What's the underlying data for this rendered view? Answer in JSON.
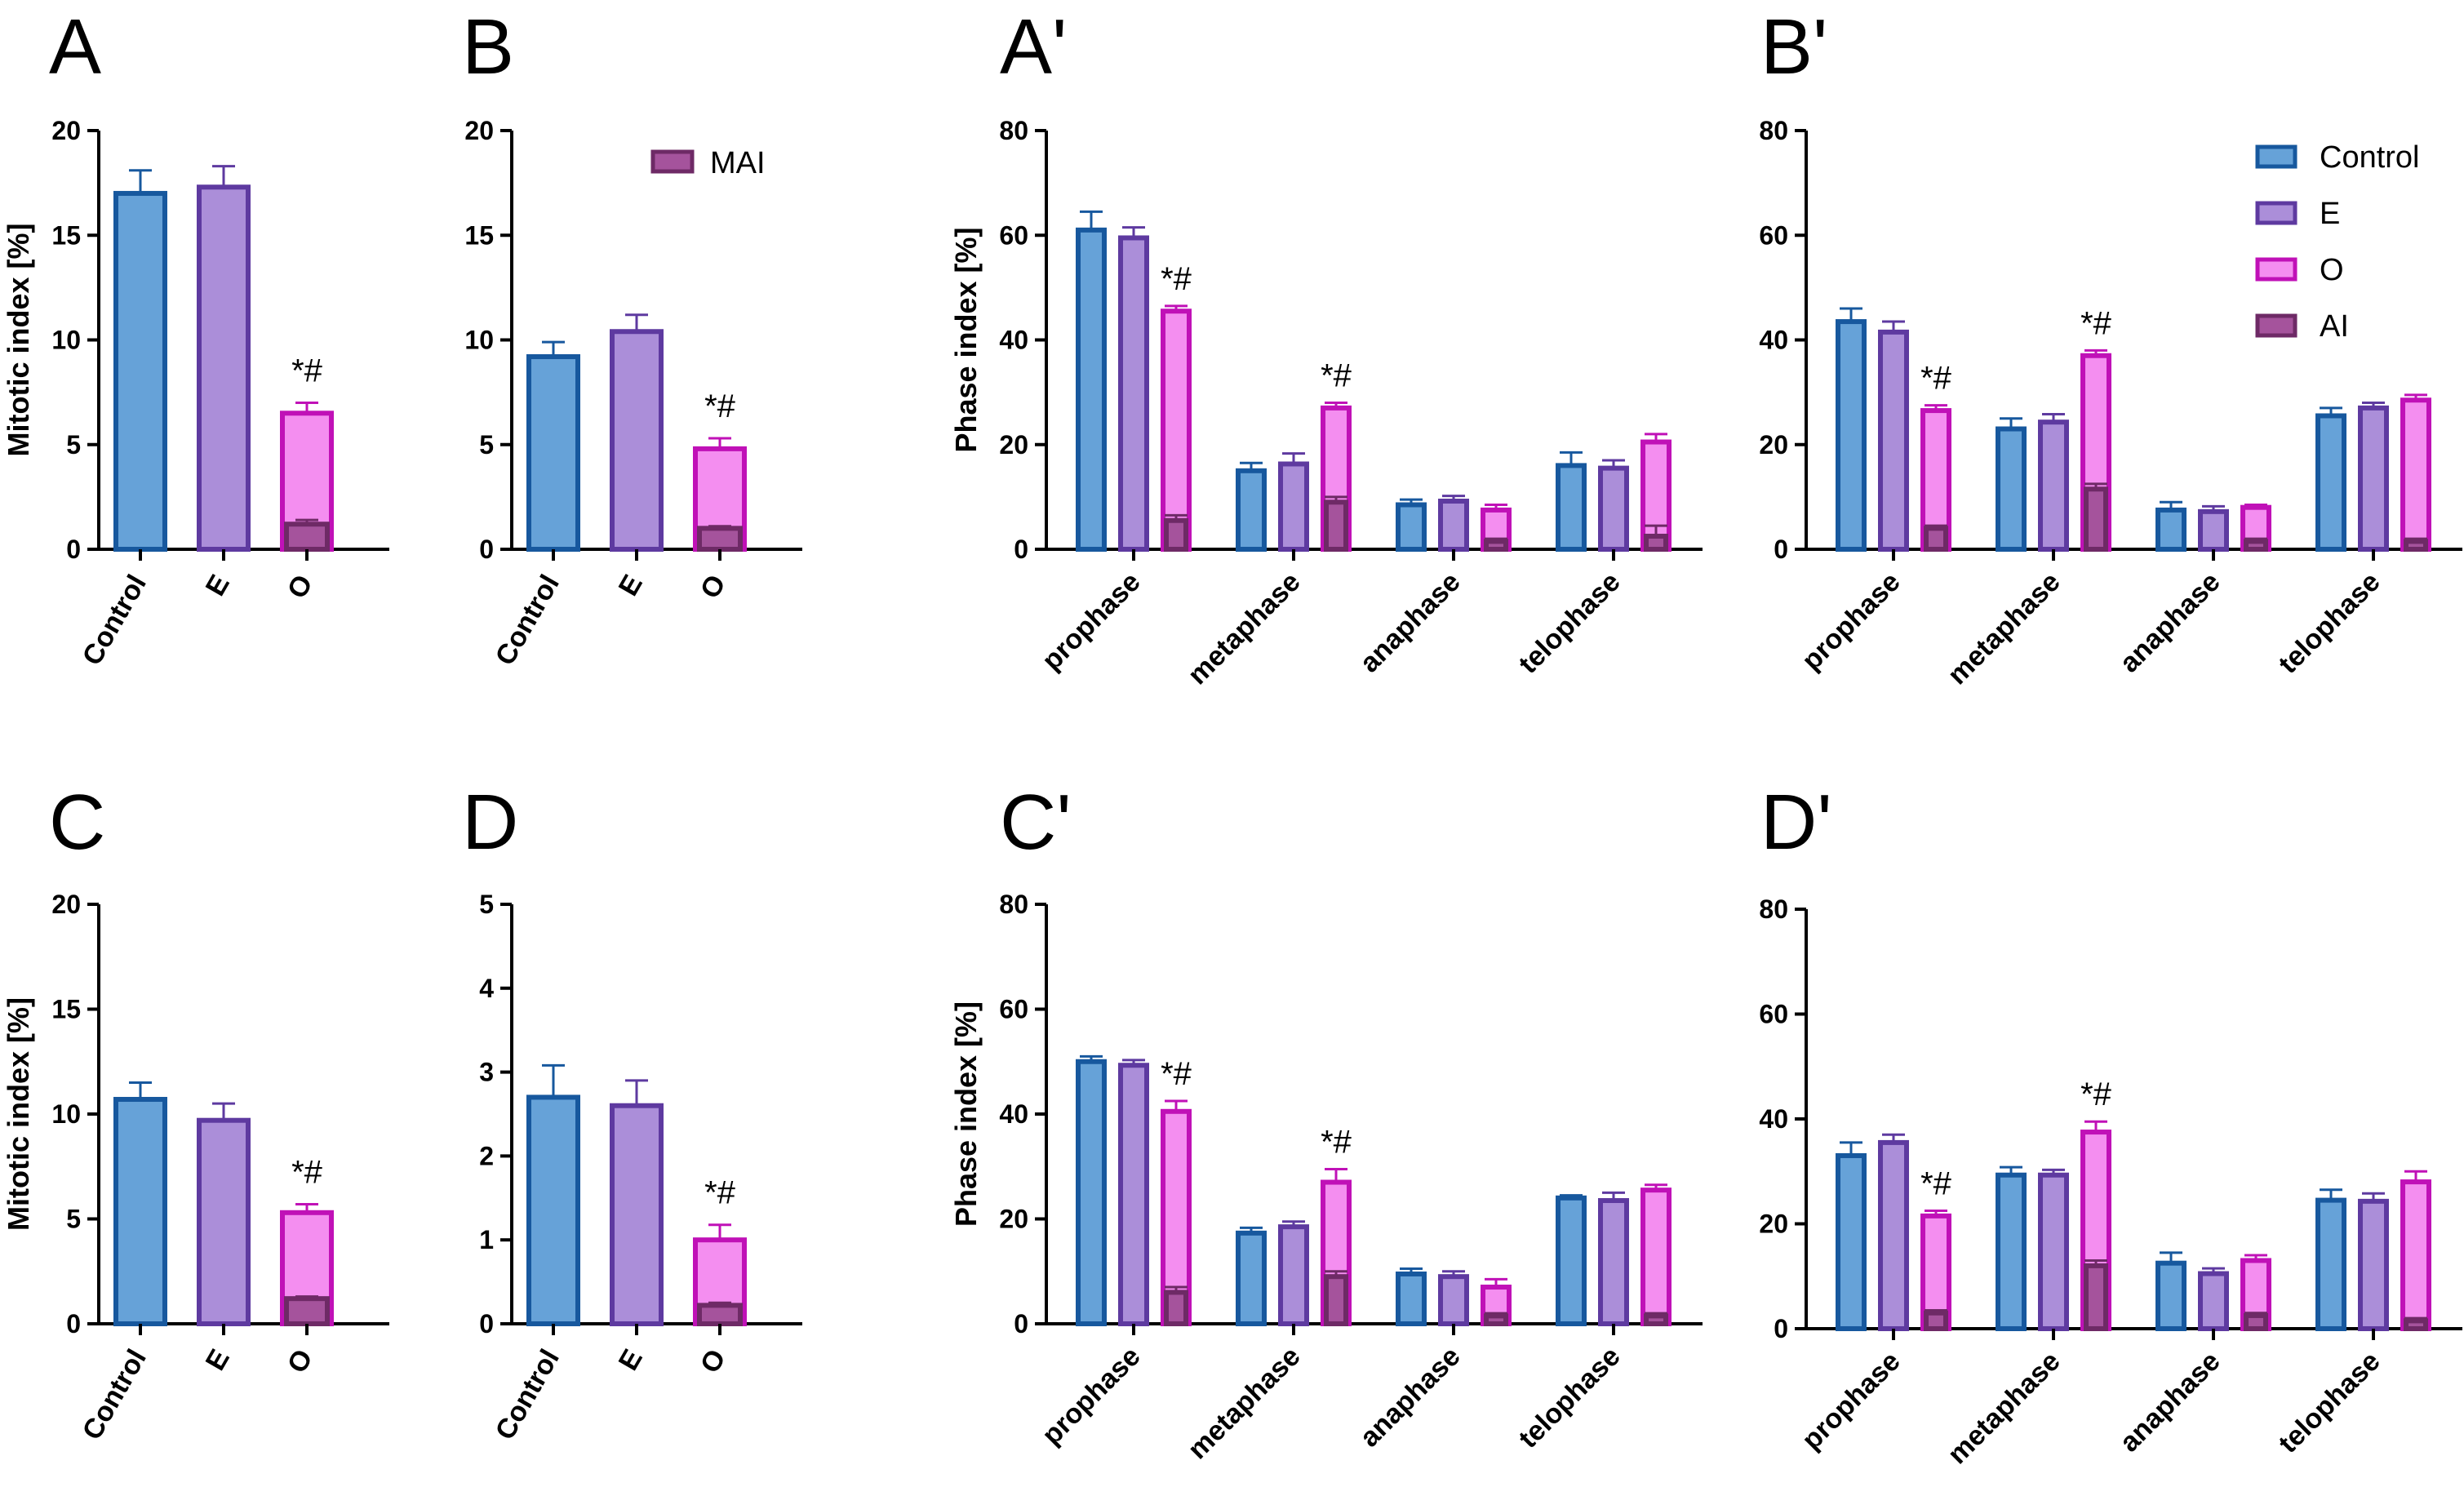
{
  "colors": {
    "Control": {
      "fill": "#66a2d8",
      "stroke": "#17589e"
    },
    "E": {
      "fill": "#ab8ed9",
      "stroke": "#5e3aa0"
    },
    "O": {
      "fill": "#f48ef0",
      "stroke": "#c011b7"
    },
    "AI": {
      "fill": "#a5539c",
      "stroke": "#6e2a66"
    },
    "MAI": {
      "fill": "#a5539c",
      "stroke": "#6e2a66"
    }
  },
  "chart_data": [
    {
      "panel": "A",
      "type": "bar",
      "ylabel": "Mitotic index [%]",
      "ylim": [
        0,
        20
      ],
      "yticks": [
        0,
        5,
        10,
        15,
        20
      ],
      "categories": [
        "Control",
        "E",
        "O"
      ],
      "values": [
        17.0,
        17.3,
        6.5
      ],
      "errors": [
        1.1,
        1.0,
        0.5
      ],
      "overlay": [
        null,
        null,
        1.2
      ],
      "overlay_error": [
        null,
        null,
        0.2
      ],
      "annotations": [
        null,
        null,
        "*#"
      ]
    },
    {
      "panel": "B",
      "type": "bar",
      "ylabel": "",
      "ylim": [
        0,
        20
      ],
      "yticks": [
        0,
        5,
        10,
        15,
        20
      ],
      "categories": [
        "Control",
        "E",
        "O"
      ],
      "values": [
        9.2,
        10.4,
        4.8
      ],
      "errors": [
        0.7,
        0.8,
        0.5
      ],
      "overlay": [
        null,
        null,
        1.0
      ],
      "overlay_error": [
        null,
        null,
        0.1
      ],
      "annotations": [
        null,
        null,
        "*#"
      ],
      "legend": [
        "MAI"
      ]
    },
    {
      "panel": "A'",
      "type": "grouped_bar",
      "ylabel": "Phase index [%]",
      "ylim": [
        0,
        80
      ],
      "yticks": [
        0,
        20,
        40,
        60,
        80
      ],
      "categories": [
        "prophase",
        "metaphase",
        "anaphase",
        "telophase"
      ],
      "series": [
        {
          "name": "Control",
          "values": [
            61,
            15,
            8.5,
            16
          ],
          "errors": [
            3.5,
            1.5,
            1.0,
            2.5
          ]
        },
        {
          "name": "E",
          "values": [
            59.5,
            16.3,
            9.2,
            15.5
          ],
          "errors": [
            2.0,
            2.0,
            1.0,
            1.5
          ]
        },
        {
          "name": "O",
          "values": [
            45.5,
            27,
            7.5,
            20.5
          ],
          "errors": [
            1.0,
            1.0,
            1.0,
            1.5
          ]
        }
      ],
      "overlay": {
        "name": "AI",
        "values": [
          5.5,
          9,
          1.5,
          2.5
        ],
        "errors": [
          1.0,
          1.0,
          0.5,
          2.0
        ]
      },
      "annotations": [
        "*#",
        "*#",
        null,
        null
      ]
    },
    {
      "panel": "B'",
      "type": "grouped_bar",
      "ylabel": "",
      "ylim": [
        0,
        80
      ],
      "yticks": [
        0,
        20,
        40,
        60,
        80
      ],
      "categories": [
        "prophase",
        "metaphase",
        "anaphase",
        "telophase"
      ],
      "series": [
        {
          "name": "Control",
          "values": [
            43.5,
            23,
            7.5,
            25.5
          ],
          "errors": [
            2.5,
            2.0,
            1.5,
            1.5
          ]
        },
        {
          "name": "E",
          "values": [
            41.5,
            24.3,
            7.2,
            27
          ],
          "errors": [
            2.0,
            1.5,
            1.0,
            1.0
          ]
        },
        {
          "name": "O",
          "values": [
            26.5,
            37,
            8.0,
            28.5
          ],
          "errors": [
            1.0,
            1.0,
            0.5,
            1.0
          ]
        }
      ],
      "overlay": {
        "name": "AI",
        "values": [
          4,
          11.5,
          1.5,
          1.5
        ],
        "errors": [
          0.5,
          1.0,
          0.5,
          0.5
        ]
      },
      "annotations": [
        "*#",
        "*#",
        null,
        null
      ],
      "legend": [
        "Control",
        "E",
        "O",
        "AI"
      ]
    },
    {
      "panel": "C",
      "type": "bar",
      "ylabel": "Mitotic index [%]",
      "ylim": [
        0,
        20
      ],
      "yticks": [
        0,
        5,
        10,
        15,
        20
      ],
      "categories": [
        "Control",
        "E",
        "O"
      ],
      "values": [
        10.7,
        9.7,
        5.3
      ],
      "errors": [
        0.8,
        0.8,
        0.4
      ],
      "overlay": [
        null,
        null,
        1.2
      ],
      "overlay_error": [
        null,
        null,
        0.1
      ],
      "annotations": [
        null,
        null,
        "*#"
      ]
    },
    {
      "panel": "D",
      "type": "bar",
      "ylabel": "",
      "ylim": [
        0,
        5
      ],
      "yticks": [
        0,
        1,
        2,
        3,
        4,
        5
      ],
      "categories": [
        "Control",
        "E",
        "O"
      ],
      "values": [
        2.7,
        2.6,
        1.0
      ],
      "errors": [
        0.38,
        0.3,
        0.18
      ],
      "overlay": [
        null,
        null,
        0.22
      ],
      "overlay_error": [
        null,
        null,
        0.03
      ],
      "annotations": [
        null,
        null,
        "*#"
      ]
    },
    {
      "panel": "C'",
      "type": "grouped_bar",
      "ylabel": "Phase index [%]",
      "ylim": [
        0,
        80
      ],
      "yticks": [
        0,
        20,
        40,
        60,
        80
      ],
      "categories": [
        "prophase",
        "metaphase",
        "anaphase",
        "telophase"
      ],
      "series": [
        {
          "name": "Control",
          "values": [
            50,
            17.3,
            9.5,
            24
          ],
          "errors": [
            1.0,
            1.0,
            1.0,
            0.5
          ]
        },
        {
          "name": "E",
          "values": [
            49.3,
            18.5,
            9.0,
            23.5
          ],
          "errors": [
            1.0,
            1.0,
            1.0,
            1.5
          ]
        },
        {
          "name": "O",
          "values": [
            40.5,
            27,
            7.0,
            25.5
          ],
          "errors": [
            2.0,
            2.5,
            1.5,
            1.0
          ]
        }
      ],
      "overlay": {
        "name": "AI",
        "values": [
          6,
          9,
          1.5,
          1.5
        ],
        "errors": [
          1.0,
          1.0,
          0.5,
          0.5
        ]
      },
      "annotations": [
        "*#",
        "*#",
        null,
        null
      ]
    },
    {
      "panel": "D'",
      "type": "grouped_bar",
      "ylabel": "",
      "ylim": [
        0,
        80
      ],
      "yticks": [
        0,
        20,
        40,
        60,
        80
      ],
      "categories": [
        "prophase",
        "metaphase",
        "anaphase",
        "telophase"
      ],
      "series": [
        {
          "name": "Control",
          "values": [
            33,
            29.3,
            12.5,
            24.5
          ],
          "errors": [
            2.5,
            1.5,
            2.0,
            2.0
          ]
        },
        {
          "name": "E",
          "values": [
            35.5,
            29.3,
            10.5,
            24.3
          ],
          "errors": [
            1.5,
            1.0,
            1.0,
            1.5
          ]
        },
        {
          "name": "O",
          "values": [
            21.5,
            37.5,
            13,
            28
          ],
          "errors": [
            1.0,
            2.0,
            1.0,
            2.0
          ]
        }
      ],
      "overlay": {
        "name": "AI",
        "values": [
          3,
          12,
          2.5,
          1.5
        ],
        "errors": [
          0.5,
          1.0,
          0.5,
          0.5
        ]
      },
      "annotations": [
        "*#",
        "*#",
        null,
        null
      ]
    }
  ]
}
